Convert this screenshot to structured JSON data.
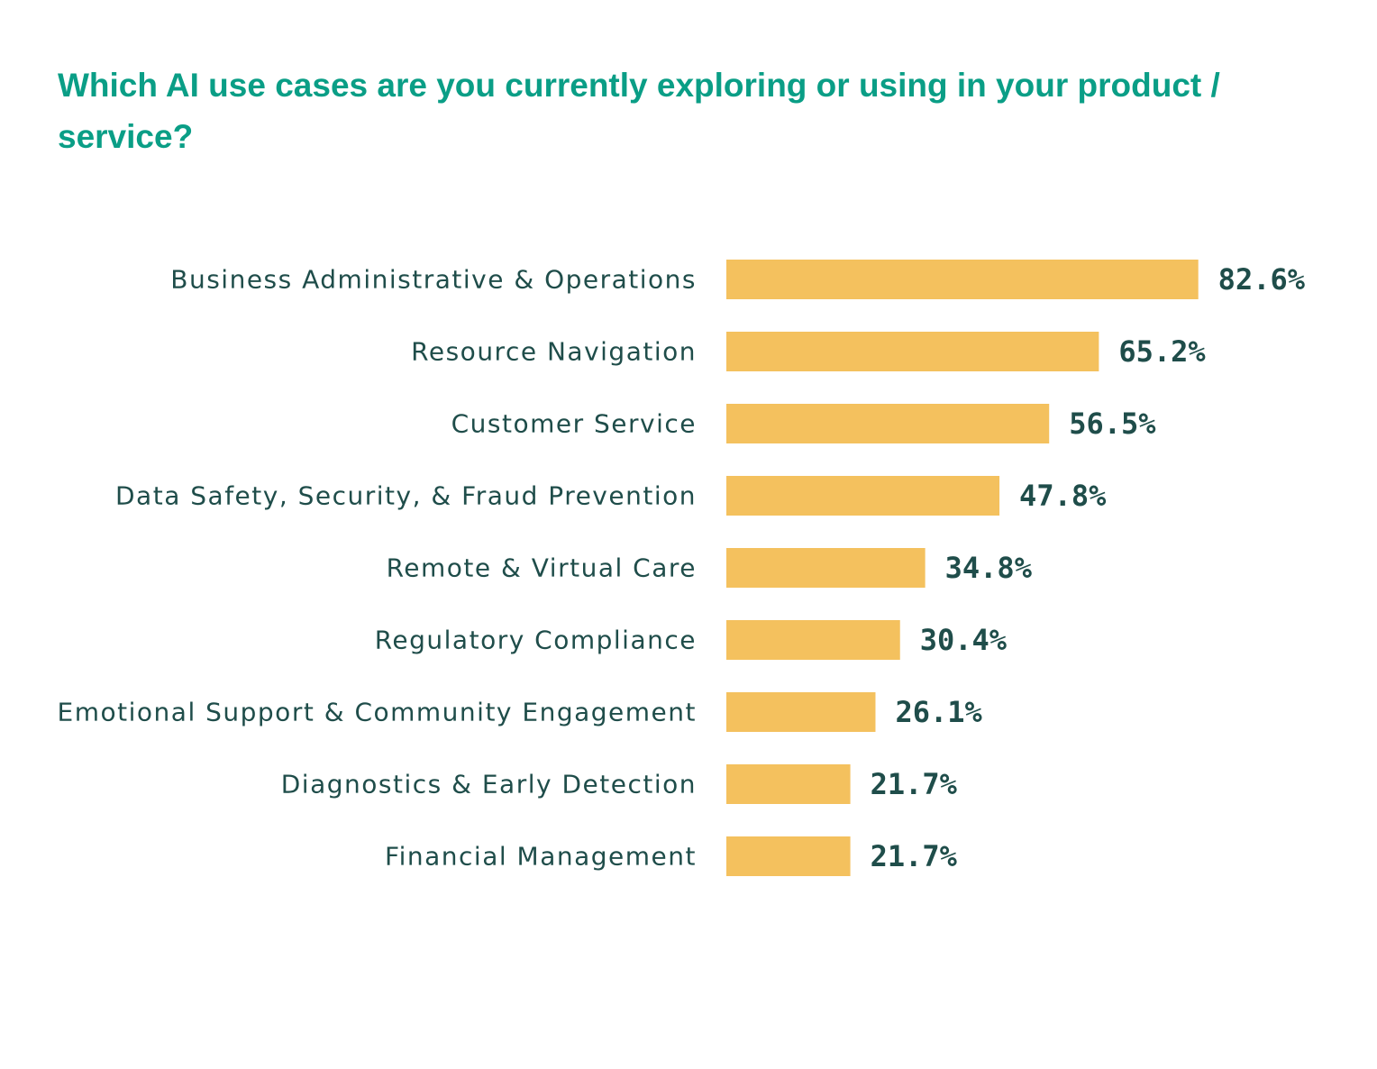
{
  "chart_data": {
    "type": "bar",
    "orientation": "horizontal",
    "title": "Which AI use cases are you currently exploring or using in your product / service?",
    "categories": [
      "Business Administrative & Operations",
      "Resource Navigation",
      "Customer Service",
      "Data Safety, Security, & Fraud Prevention",
      "Remote & Virtual Care",
      "Regulatory Compliance",
      "Emotional Support & Community Engagement",
      "Diagnostics & Early Detection",
      "Financial Management"
    ],
    "values": [
      82.6,
      65.2,
      56.5,
      47.8,
      34.8,
      30.4,
      26.1,
      21.7,
      21.7
    ],
    "value_labels": [
      "82.6%",
      "65.2%",
      "56.5%",
      "47.8%",
      "34.8%",
      "30.4%",
      "26.1%",
      "21.7%",
      "21.7%"
    ],
    "xlabel": "",
    "ylabel": "",
    "xlim": [
      0,
      100
    ],
    "grid": false,
    "legend": "none",
    "colors": {
      "bar": "#f4c15e",
      "title": "#0a9e86",
      "text": "#1f4d4a"
    }
  }
}
